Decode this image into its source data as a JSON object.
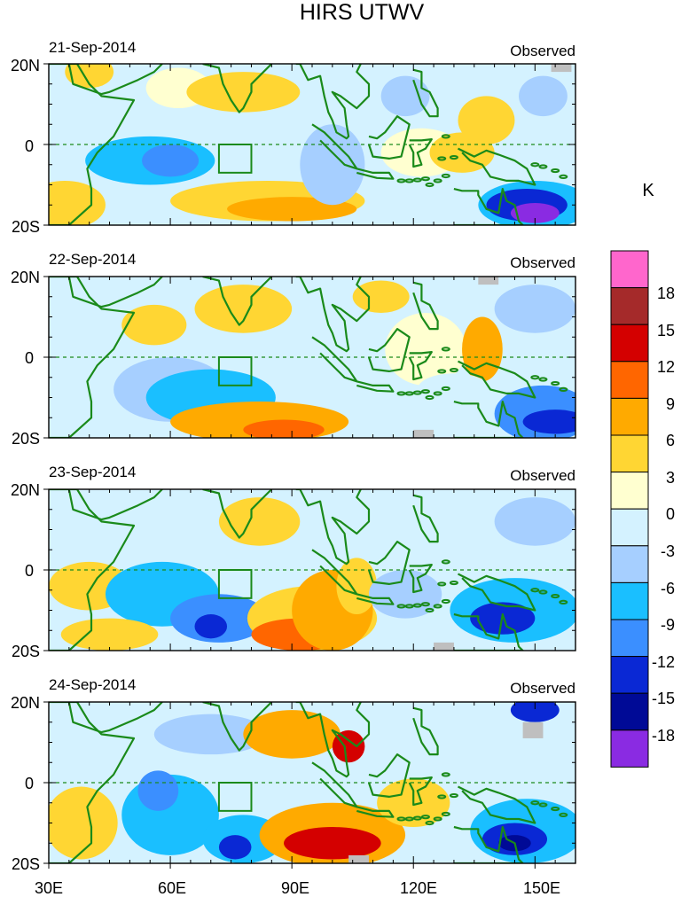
{
  "chart_data": {
    "type": "heatmap",
    "title": "HIRS UTWV",
    "panels": [
      {
        "date": "21-Sep-2014",
        "tag": "Observed"
      },
      {
        "date": "22-Sep-2014",
        "tag": "Observed"
      },
      {
        "date": "23-Sep-2014",
        "tag": "Observed"
      },
      {
        "date": "24-Sep-2014",
        "tag": "Observed"
      }
    ],
    "lat_range": [
      -20,
      20
    ],
    "lon_range": [
      30,
      160
    ],
    "lat_labels": [
      "20N",
      "0",
      "20S"
    ],
    "lon_ticks": [
      30,
      60,
      90,
      120,
      150
    ],
    "lon_labels": [
      "30E",
      "60E",
      "90E",
      "120E",
      "150E"
    ],
    "colorbar": {
      "unit": "K",
      "levels": [
        18,
        15,
        12,
        9,
        6,
        3,
        0,
        -3,
        -6,
        -9,
        -12,
        -15,
        -18
      ],
      "labels": [
        "18",
        "15",
        "12",
        "9",
        "6",
        "3",
        "0",
        "-3",
        "-6",
        "-9",
        "-12",
        "-15",
        "-18"
      ],
      "colors": [
        "#ff66cc",
        "#a52a2a",
        "#d40000",
        "#ff6600",
        "#ffaa00",
        "#ffd633",
        "#ffffd0",
        "#d4f2ff",
        "#a6cfff",
        "#1abfff",
        "#3b8fff",
        "#0a28d4",
        "#000a96",
        "#8a2be2"
      ]
    },
    "equator_line": "dashed",
    "box_region": {
      "lon": [
        72,
        80
      ],
      "lat": [
        -7,
        0
      ]
    }
  },
  "colors": {
    "coast": "#1a8a1a",
    "missing": "#bfbfbf",
    "border": "#2e7a2e"
  }
}
